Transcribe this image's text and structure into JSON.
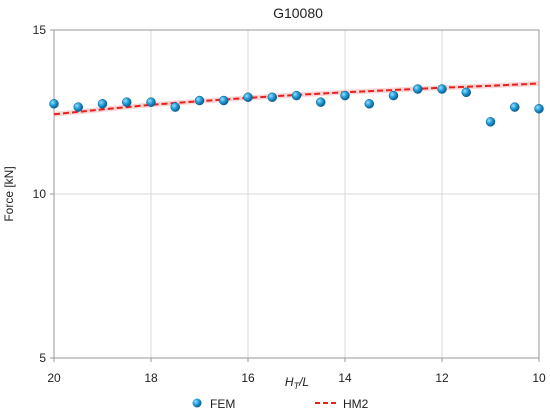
{
  "chart_data": {
    "type": "scatter",
    "title": "G10080",
    "ylabel": "Force [kN]",
    "xlabel": {
      "main": "H",
      "sub": "T",
      "rest": "/L"
    },
    "xlim": [
      20,
      10
    ],
    "ylim": [
      5,
      15
    ],
    "xticks": [
      "20",
      "18",
      "16",
      "14",
      "12",
      "10"
    ],
    "yticks": [
      "5",
      "10",
      "15"
    ],
    "grid": true,
    "legend_position": "bottom",
    "series": [
      {
        "name": "FEM",
        "type": "scatter",
        "color": "#1f9bd6",
        "x": [
          20,
          19.5,
          19,
          18.5,
          18,
          17.5,
          17,
          16.5,
          16,
          15.5,
          15,
          14.5,
          14,
          13.5,
          13,
          12.5,
          12,
          11.5,
          11,
          10.5,
          10
        ],
        "y": [
          12.75,
          12.65,
          12.75,
          12.8,
          12.8,
          12.65,
          12.85,
          12.85,
          12.95,
          12.95,
          13.0,
          12.8,
          13.0,
          12.75,
          13.0,
          13.2,
          13.2,
          13.1,
          12.2,
          12.65,
          12.6
        ]
      },
      {
        "name": "HM2",
        "type": "line",
        "style": "dashed",
        "color": "#e8201c",
        "x": [
          20,
          19,
          18,
          17,
          16,
          15,
          14,
          13,
          12,
          11,
          10
        ],
        "y": [
          12.43,
          12.58,
          12.72,
          12.83,
          12.93,
          13.02,
          13.1,
          13.17,
          13.24,
          13.3,
          13.37
        ]
      }
    ]
  }
}
